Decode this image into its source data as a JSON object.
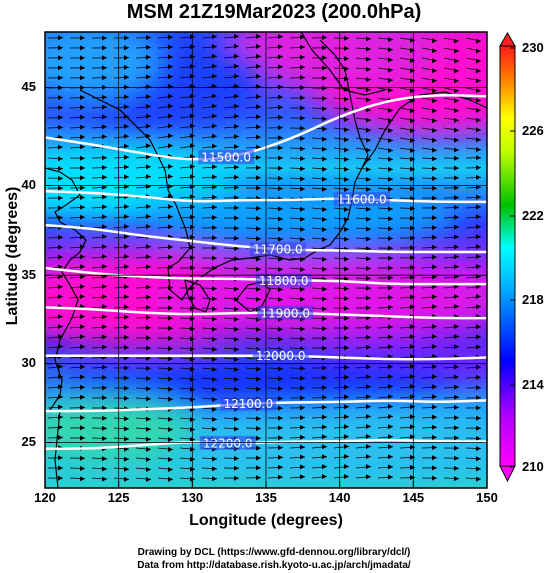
{
  "title": "MSM 21Z19Mar2023 (200.0hPa)",
  "xlabel": "Longitude (degrees)",
  "ylabel": "Latitude  (degrees)",
  "x_ticks": [
    "120",
    "125",
    "130",
    "135",
    "140",
    "145",
    "150"
  ],
  "y_ticks": [
    "45",
    "40",
    "35",
    "30",
    "25"
  ],
  "colorbar": {
    "ticks": [
      "230",
      "226",
      "222",
      "218",
      "214",
      "210"
    ],
    "colors": [
      "#ff0a64",
      "#ff8000",
      "#ffff00",
      "#00c000",
      "#00ffff",
      "#0000ff",
      "#ff00ff"
    ]
  },
  "contours": [
    {
      "label": "11500.0",
      "lat": [
        42.2,
        41.8,
        41.3,
        40.9,
        41.2,
        42.1,
        43.4,
        44.3,
        44.6,
        44.5
      ]
    },
    {
      "label": "11600.0",
      "lat": [
        39.2,
        39.1,
        38.9,
        38.6,
        38.7,
        38.7,
        38.8,
        38.7,
        38.6,
        38.6
      ]
    },
    {
      "label": "11700.0",
      "lat": [
        37.3,
        37.1,
        36.7,
        36.4,
        36.1,
        35.9,
        35.9,
        35.8,
        35.8,
        35.8
      ]
    },
    {
      "label": "11800.0",
      "lat": [
        34.9,
        34.6,
        34.4,
        34.3,
        34.3,
        34.2,
        34.2,
        34.0,
        34.0,
        34.0
      ]
    },
    {
      "label": "11900.0",
      "lat": [
        32.7,
        32.6,
        32.4,
        32.3,
        32.4,
        32.4,
        32.3,
        32.2,
        32.1,
        32.1
      ]
    },
    {
      "label": "12000.0",
      "lat": [
        30.0,
        30.0,
        30.0,
        30.0,
        30.0,
        30.0,
        29.9,
        29.8,
        29.8,
        29.9
      ]
    },
    {
      "label": "12100.0",
      "lat": [
        26.9,
        26.9,
        27.0,
        27.1,
        27.3,
        27.4,
        27.4,
        27.5,
        27.4,
        27.5
      ]
    },
    {
      "label": "12200.0",
      "lat": [
        24.8,
        24.8,
        25.0,
        25.2,
        25.1,
        25.2,
        25.2,
        25.3,
        25.2,
        25.2
      ]
    }
  ],
  "credits": {
    "line1": "Drawing by DCL (https://www.gfd-dennou.org/library/dcl/)",
    "line2": "Data from http://database.rish.kyoto-u.ac.jp/arch/jmadata/"
  }
}
